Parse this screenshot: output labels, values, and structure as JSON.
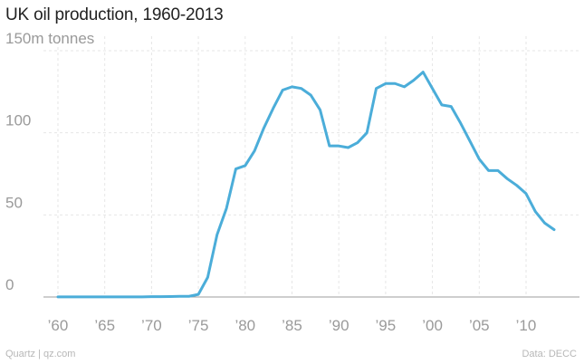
{
  "title": "UK oil production, 1960-2013",
  "footer": {
    "source_left": "Quartz | qz.com",
    "source_right": "Data: DECC"
  },
  "colors": {
    "line": "#4badd9",
    "grid": "#e6e6e6",
    "axis_text": "#9a9a9a"
  },
  "chart_data": {
    "type": "line",
    "title": "UK oil production, 1960-2013",
    "xlabel": "",
    "ylabel": "",
    "xlim": [
      1960,
      2013
    ],
    "ylim": [
      0,
      150
    ],
    "grid": true,
    "yticks": [
      {
        "value": 0,
        "label": "0"
      },
      {
        "value": 50,
        "label": "50"
      },
      {
        "value": 100,
        "label": "100"
      },
      {
        "value": 150,
        "label": "150m tonnes"
      }
    ],
    "xticks": [
      {
        "value": 1960,
        "label": "’60"
      },
      {
        "value": 1965,
        "label": "’65"
      },
      {
        "value": 1970,
        "label": "’70"
      },
      {
        "value": 1975,
        "label": "’75"
      },
      {
        "value": 1980,
        "label": "’80"
      },
      {
        "value": 1985,
        "label": "’85"
      },
      {
        "value": 1990,
        "label": "’90"
      },
      {
        "value": 1995,
        "label": "’95"
      },
      {
        "value": 2000,
        "label": "’00"
      },
      {
        "value": 2005,
        "label": "’05"
      },
      {
        "value": 2010,
        "label": "’10"
      }
    ],
    "series": [
      {
        "x": [
          1960,
          1961,
          1962,
          1963,
          1964,
          1965,
          1966,
          1967,
          1968,
          1969,
          1970,
          1971,
          1972,
          1973,
          1974,
          1975,
          1976,
          1977,
          1978,
          1979,
          1980,
          1981,
          1982,
          1983,
          1984,
          1985,
          1986,
          1987,
          1988,
          1989,
          1990,
          1991,
          1992,
          1993,
          1994,
          1995,
          1996,
          1997,
          1998,
          1999,
          2000,
          2001,
          2002,
          2003,
          2004,
          2005,
          2006,
          2007,
          2008,
          2009,
          2010,
          2011,
          2012,
          2013
        ],
        "values": [
          0.1,
          0.1,
          0.1,
          0.1,
          0.1,
          0.1,
          0.1,
          0.1,
          0.1,
          0.1,
          0.2,
          0.2,
          0.3,
          0.4,
          0.4,
          1.6,
          12,
          38,
          54,
          78,
          80,
          89,
          103,
          115,
          126,
          128,
          127,
          123,
          114,
          92,
          92,
          91,
          94,
          100,
          127,
          130,
          130,
          128,
          132,
          137,
          127,
          117,
          116,
          106,
          95,
          84,
          77,
          77,
          72,
          68,
          63,
          52,
          45,
          41
        ]
      }
    ]
  }
}
